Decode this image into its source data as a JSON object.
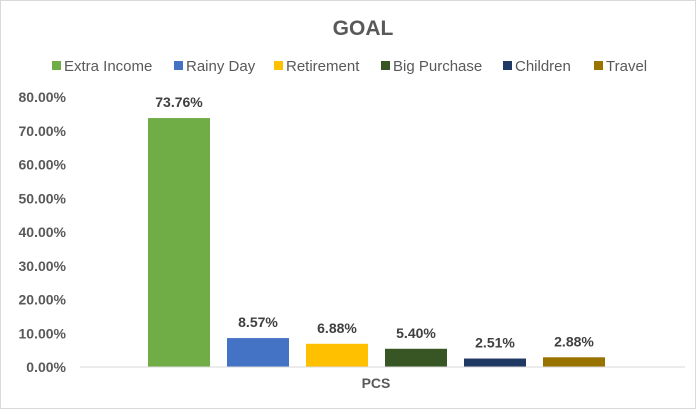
{
  "chart_data": {
    "type": "bar",
    "title": "GOAL",
    "categories": [
      "PCS"
    ],
    "series": [
      {
        "name": "Extra Income",
        "values": [
          73.76
        ],
        "color": "#70ad47",
        "label": "73.76%"
      },
      {
        "name": "Rainy Day",
        "values": [
          8.57
        ],
        "color": "#4472c4",
        "label": "8.57%"
      },
      {
        "name": "Retirement",
        "values": [
          6.88
        ],
        "color": "#ffc000",
        "label": "6.88%"
      },
      {
        "name": "Big Purchase",
        "values": [
          5.4
        ],
        "color": "#375623",
        "label": "5.40%"
      },
      {
        "name": "Children",
        "values": [
          2.51
        ],
        "color": "#203864",
        "label": "2.51%"
      },
      {
        "name": "Travel",
        "values": [
          2.88
        ],
        "color": "#997300",
        "label": "2.88%"
      }
    ],
    "y_ticks": [
      "0.00%",
      "10.00%",
      "20.00%",
      "30.00%",
      "40.00%",
      "50.00%",
      "60.00%",
      "70.00%",
      "80.00%"
    ],
    "ylim": [
      0,
      80
    ],
    "legend_position": "top",
    "grid": false
  }
}
